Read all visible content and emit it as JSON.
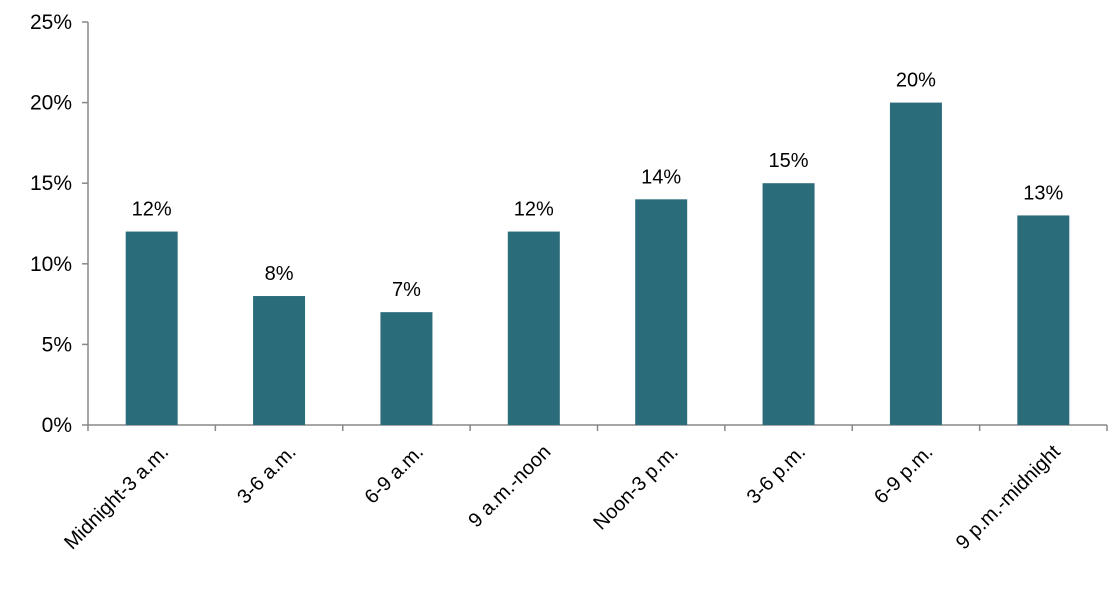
{
  "chart_data": {
    "type": "bar",
    "title": "",
    "xlabel": "",
    "ylabel": "",
    "categories": [
      "Midnight-3 a.m.",
      "3-6 a.m.",
      "6-9 a.m.",
      "9 a.m.-noon",
      "Noon-3 p.m.",
      "3-6 p.m.",
      "6-9 p.m.",
      "9 p.m.-midnight"
    ],
    "values": [
      12,
      8,
      7,
      12,
      14,
      15,
      20,
      13
    ],
    "data_labels": [
      "12%",
      "8%",
      "7%",
      "12%",
      "14%",
      "15%",
      "20%",
      "13%"
    ],
    "ylim": [
      0,
      25
    ],
    "y_ticks": [
      0,
      5,
      10,
      15,
      20,
      25
    ],
    "y_tick_labels": [
      "0%",
      "5%",
      "10%",
      "15%",
      "20%",
      "25%"
    ],
    "grid": false,
    "legend": "none",
    "bar_color": "#2B6C7A",
    "axis_color": "#888888"
  }
}
